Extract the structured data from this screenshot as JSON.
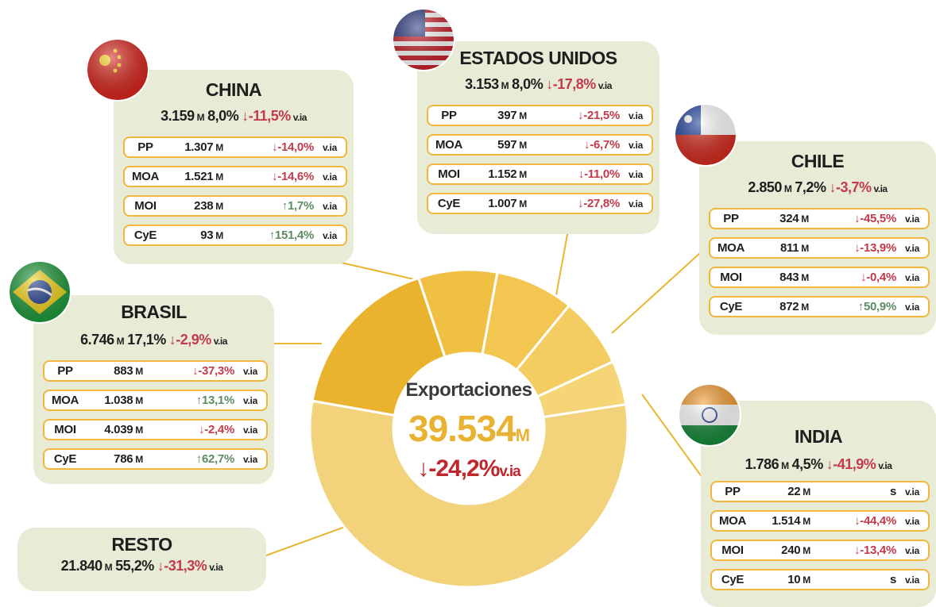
{
  "chart_data": {
    "type": "donut",
    "center_title": "Exportaciones",
    "total": "39.534",
    "unit": "M",
    "total_change": "↓-24,2%",
    "change_unit": "v.ia",
    "categories": [
      "BRASIL",
      "CHINA",
      "ESTADOS UNIDOS",
      "CHILE",
      "INDIA",
      "RESTO"
    ],
    "values": [
      17.1,
      8.0,
      8.0,
      7.2,
      4.5,
      55.2
    ],
    "value_labels": [
      "17,1%",
      "8,0%",
      "8,0%",
      "7,2%",
      "4,5%",
      "55,2%"
    ],
    "colors": [
      "#e9b32e",
      "#f0c042",
      "#f2c650",
      "#f3cc62",
      "#f5d576",
      "#f3d27c"
    ],
    "countries": [
      {
        "exports": "6.746",
        "change": "↓-2,9%",
        "products": [
          {
            "name": "PP",
            "value": "883",
            "change": "↓-37,3%"
          },
          {
            "name": "MOA",
            "value": "1.038",
            "change": "↑13,1%"
          },
          {
            "name": "MOI",
            "value": "4.039",
            "change": "↓-2,4%"
          },
          {
            "name": "CyE",
            "value": "786",
            "change": "↑62,7%"
          }
        ]
      },
      {
        "exports": "3.159",
        "change": "↓-11,5%",
        "products": [
          {
            "name": "PP",
            "value": "1.307",
            "change": "↓-14,0%"
          },
          {
            "name": "MOA",
            "value": "1.521",
            "change": "↓-14,6%"
          },
          {
            "name": "MOI",
            "value": "238",
            "change": "↑1,7%"
          },
          {
            "name": "CyE",
            "value": "93",
            "change": "↑151,4%"
          }
        ]
      },
      {
        "exports": "3.153",
        "change": "↓-17,8%",
        "products": [
          {
            "name": "PP",
            "value": "397",
            "change": "↓-21,5%"
          },
          {
            "name": "MOA",
            "value": "597",
            "change": "↓-6,7%"
          },
          {
            "name": "MOI",
            "value": "1.152",
            "change": "↓-11,0%"
          },
          {
            "name": "CyE",
            "value": "1.007",
            "change": "↓-27,8%"
          }
        ]
      },
      {
        "exports": "2.850",
        "change": "↓-3,7%",
        "products": [
          {
            "name": "PP",
            "value": "324",
            "change": "↓-45,5%"
          },
          {
            "name": "MOA",
            "value": "811",
            "change": "↓-13,9%"
          },
          {
            "name": "MOI",
            "value": "843",
            "change": "↓-0,4%"
          },
          {
            "name": "CyE",
            "value": "872",
            "change": "↑50,9%"
          }
        ]
      },
      {
        "exports": "1.786",
        "change": "↓-41,9%",
        "products": [
          {
            "name": "PP",
            "value": "22",
            "change": "s"
          },
          {
            "name": "MOA",
            "value": "1.514",
            "change": "↓-44,4%"
          },
          {
            "name": "MOI",
            "value": "240",
            "change": "↓-13,4%"
          },
          {
            "name": "CyE",
            "value": "10",
            "change": "s"
          }
        ]
      },
      {
        "exports": "21.840",
        "change": "↓-31,3%",
        "products": []
      }
    ]
  }
}
